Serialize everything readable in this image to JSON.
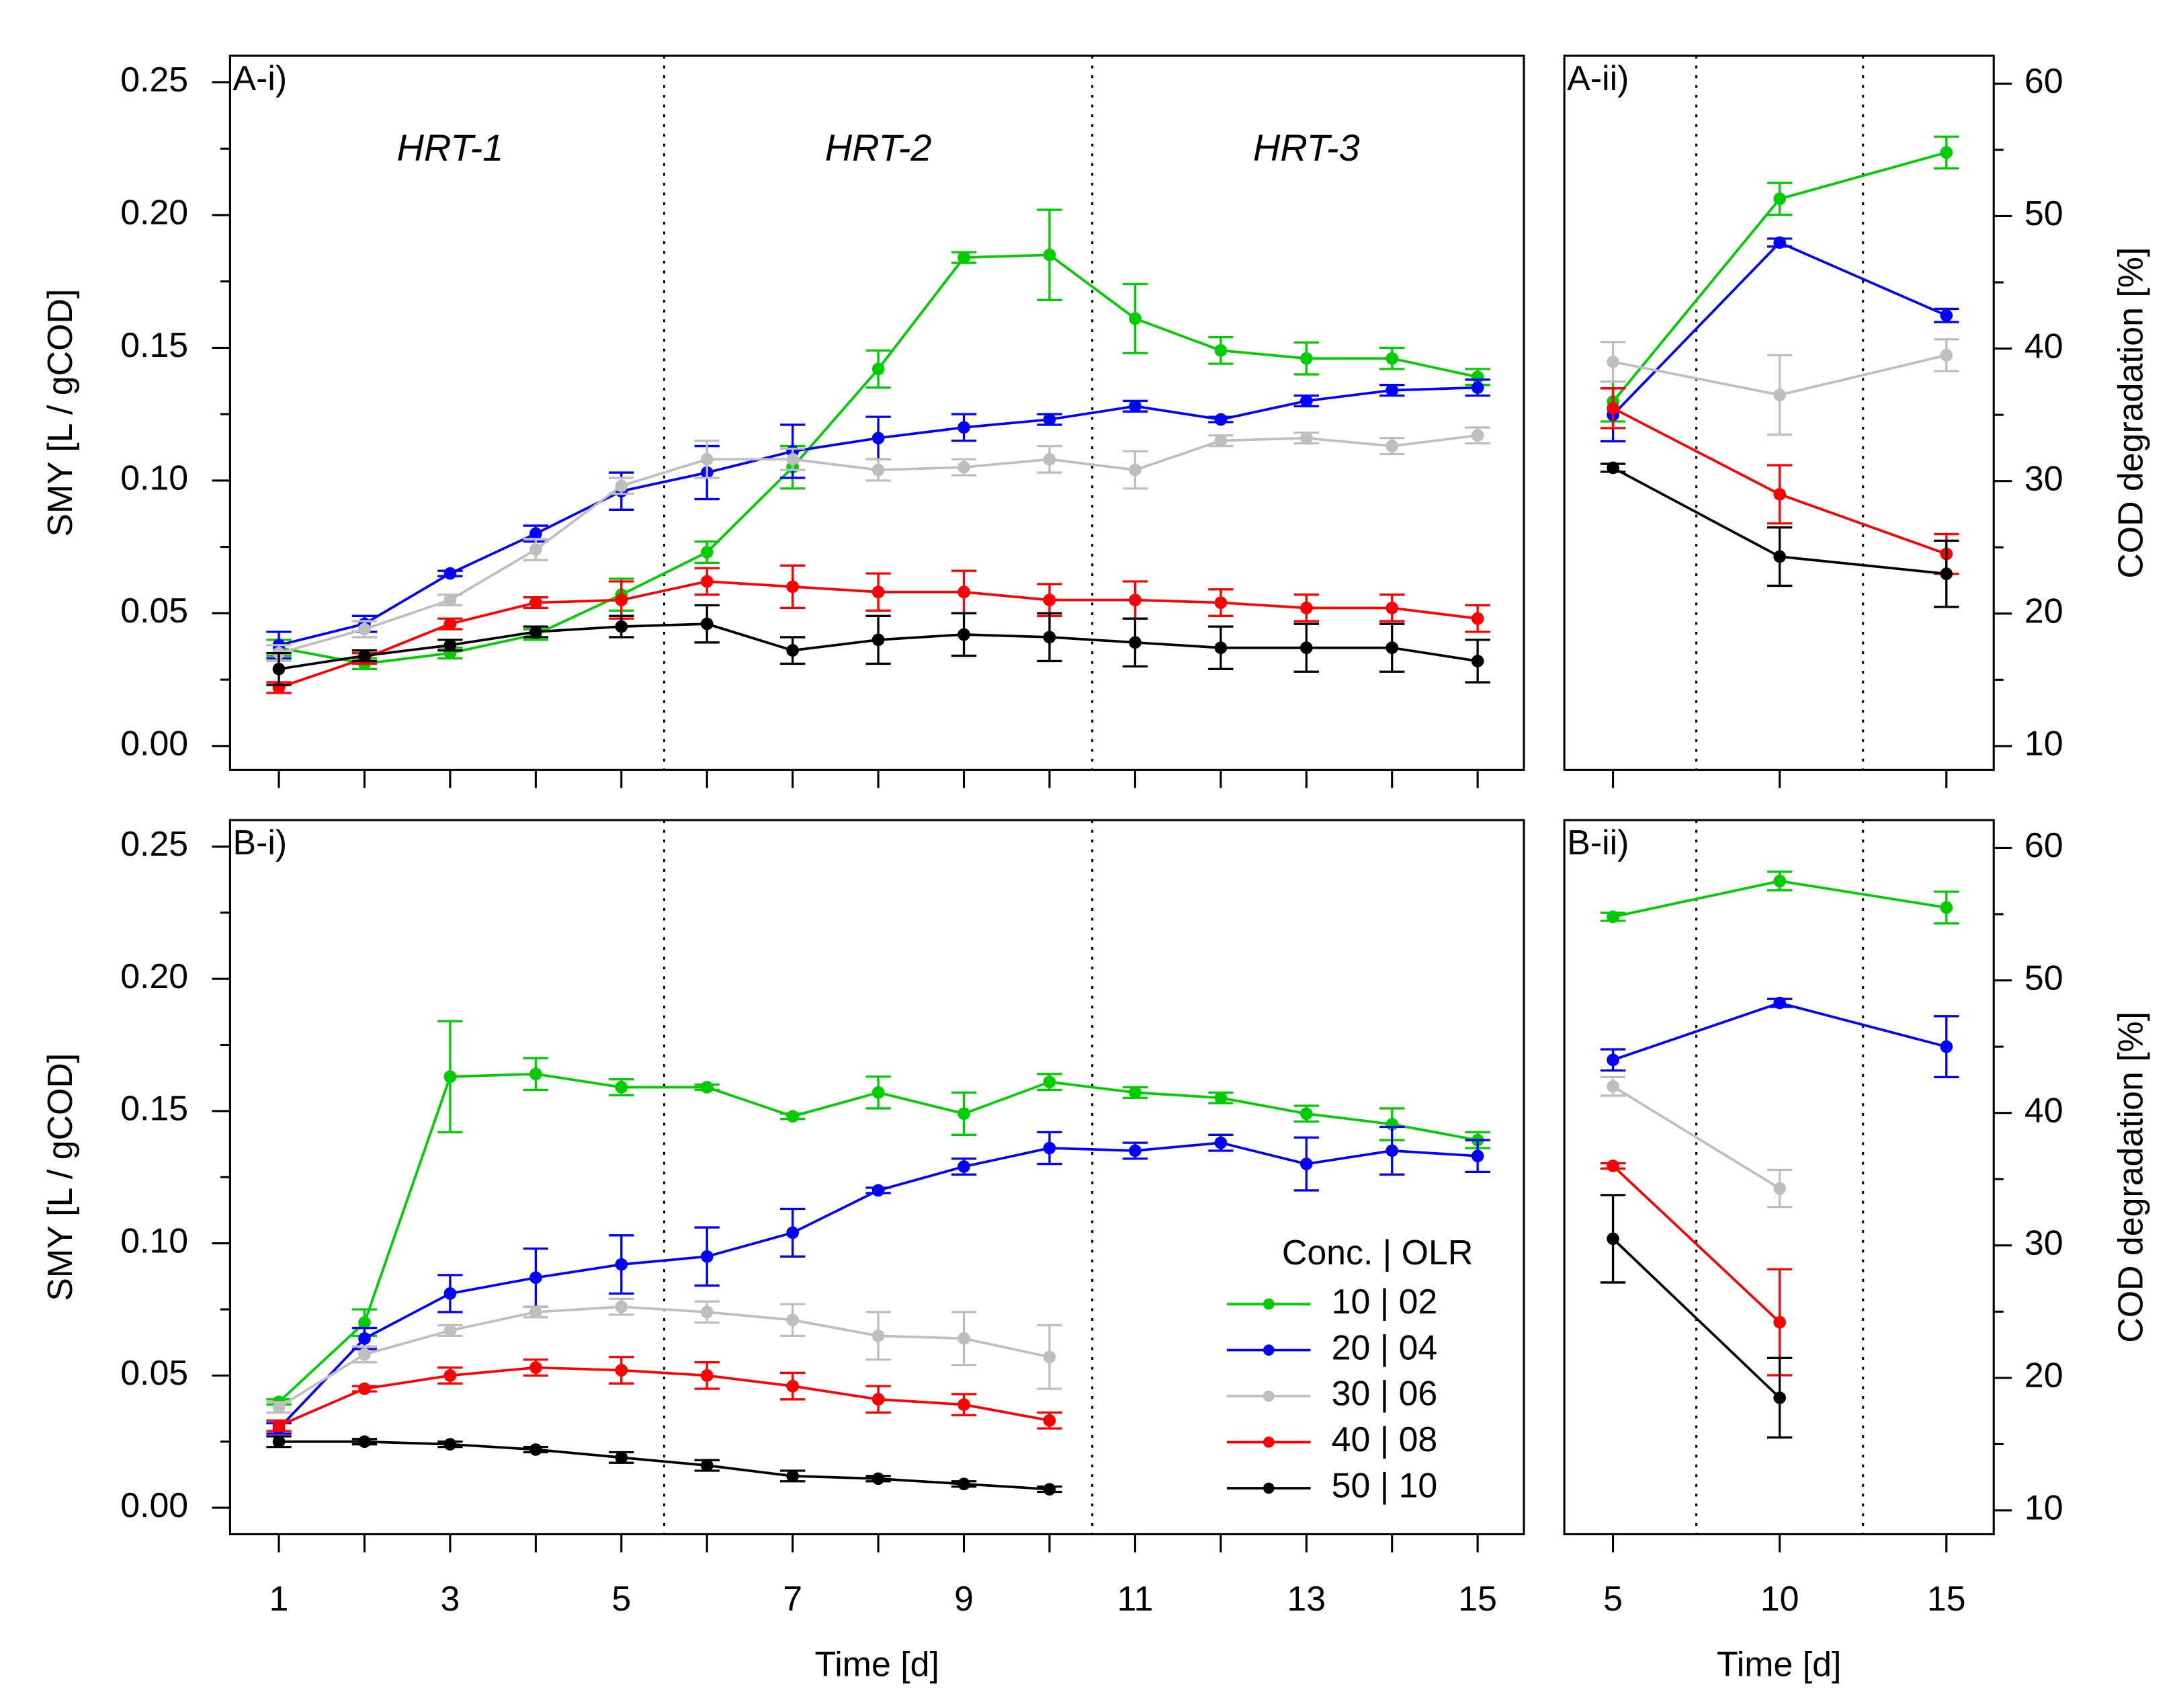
{
  "chart_data": [
    {
      "type": "line",
      "title": "A-i)",
      "ylabel": "SMY [L / gCOD]",
      "x": [
        1,
        2,
        3,
        4,
        5,
        6,
        7,
        8,
        9,
        10,
        11,
        12,
        13,
        14,
        15
      ],
      "xlim": [
        0.43,
        15.54
      ],
      "xtick_marks": [
        1,
        2,
        3,
        4,
        5,
        6,
        7,
        8,
        9,
        10,
        11,
        12,
        13,
        14,
        15
      ],
      "ylim": [
        -0.009,
        0.26
      ],
      "yticks": [
        {
          "value": 0,
          "label": "0.00"
        },
        0.05,
        {
          "value": 0.1,
          "label": "0.10"
        },
        0.15,
        {
          "value": 0.2,
          "label": "0.20"
        },
        0.25
      ],
      "yminorticks": [
        0.025,
        0.075,
        0.125,
        0.175,
        0.225
      ],
      "vlines": [
        5.5,
        10.5
      ],
      "annotations": [
        "HRT-1",
        "HRT-2",
        "HRT-3"
      ],
      "series": [
        {
          "color": "#00cc00",
          "values": [
            0.037,
            0.031,
            0.035,
            0.042,
            0.057,
            0.073,
            0.105,
            0.142,
            0.184,
            0.185,
            0.161,
            0.149,
            0.146,
            0.146,
            0.139
          ],
          "errors": [
            0.003,
            0.002,
            0.002,
            0.002,
            0.006,
            0.004,
            0.008,
            0.007,
            0.002,
            0.017,
            0.013,
            0.005,
            0.006,
            0.004,
            0.003
          ]
        },
        {
          "color": "#0000ff",
          "values": [
            0.038,
            0.046,
            0.065,
            0.08,
            0.096,
            0.103,
            0.111,
            0.116,
            0.12,
            0.123,
            0.128,
            0.123,
            0.13,
            0.134,
            0.135
          ],
          "errors": [
            0.005,
            0.003,
            0.001,
            0.003,
            0.007,
            0.01,
            0.01,
            0.008,
            0.005,
            0.002,
            0.002,
            0.001,
            0.002,
            0.002,
            0.003
          ]
        },
        {
          "color": "#bebebe",
          "values": [
            0.035,
            0.044,
            0.055,
            0.074,
            0.098,
            0.108,
            0.108,
            0.104,
            0.105,
            0.108,
            0.104,
            0.115,
            0.116,
            0.113,
            0.117
          ],
          "errors": [
            0.003,
            0.003,
            0.002,
            0.004,
            0.003,
            0.007,
            0.004,
            0.004,
            0.003,
            0.005,
            0.007,
            0.002,
            0.002,
            0.003,
            0.003
          ]
        },
        {
          "color": "#ff0000",
          "values": [
            0.022,
            0.033,
            0.046,
            0.054,
            0.055,
            0.062,
            0.06,
            0.058,
            0.058,
            0.055,
            0.055,
            0.054,
            0.052,
            0.052,
            0.048
          ],
          "errors": [
            0.002,
            0.002,
            0.002,
            0.002,
            0.007,
            0.005,
            0.008,
            0.007,
            0.008,
            0.006,
            0.007,
            0.005,
            0.005,
            0.005,
            0.005
          ]
        },
        {
          "color": "#000000",
          "values": [
            0.029,
            0.034,
            0.038,
            0.043,
            0.045,
            0.046,
            0.036,
            0.04,
            0.042,
            0.041,
            0.039,
            0.037,
            0.037,
            0.037,
            0.032
          ],
          "errors": [
            0.006,
            0.002,
            0.002,
            0.002,
            0.004,
            0.007,
            0.005,
            0.009,
            0.008,
            0.009,
            0.009,
            0.008,
            0.009,
            0.009,
            0.008
          ]
        }
      ]
    },
    {
      "type": "line",
      "title": "A-ii)",
      "y2label": "COD degradation [%]",
      "x": [
        5,
        10,
        15
      ],
      "xlim": [
        3.54,
        16.42
      ],
      "xtick_marks": [
        5,
        10,
        15
      ],
      "y2lim": [
        8.2,
        62.1
      ],
      "y2ticks": [
        10,
        20,
        30,
        40,
        50,
        60
      ],
      "y2minorticks": [
        15,
        25,
        35,
        45,
        55
      ],
      "vlines": [
        7.5,
        12.5
      ],
      "series": [
        {
          "color": "#00cc00",
          "axis": "y2",
          "values": [
            36,
            51.3,
            54.8
          ],
          "errors": [
            1.5,
            1.2,
            1.2
          ]
        },
        {
          "color": "#0000ff",
          "axis": "y2",
          "values": [
            35,
            48,
            42.5
          ],
          "errors": [
            2,
            0.3,
            0.5
          ]
        },
        {
          "color": "#bebebe",
          "axis": "y2",
          "values": [
            39,
            36.5,
            39.5
          ],
          "errors": [
            1.5,
            3,
            1.2
          ]
        },
        {
          "color": "#ff0000",
          "axis": "y2",
          "values": [
            35.5,
            29,
            24.5
          ],
          "errors": [
            1.5,
            2.2,
            1.5
          ]
        },
        {
          "color": "#000000",
          "axis": "y2",
          "values": [
            31,
            24.3,
            23
          ],
          "errors": [
            0.3,
            2.2,
            2.5
          ]
        }
      ]
    },
    {
      "type": "line",
      "title": "B-i)",
      "ylabel": "SMY [L / gCOD]",
      "xlabel": "Time [d]",
      "x": [
        1,
        2,
        3,
        4,
        5,
        6,
        7,
        8,
        9,
        10,
        11,
        12,
        13,
        14,
        15
      ],
      "xlim": [
        0.43,
        15.54
      ],
      "xticks": [
        1,
        3,
        5,
        7,
        9,
        11,
        13,
        15
      ],
      "xminorticks": [
        2,
        4,
        6,
        8,
        10,
        12,
        14
      ],
      "ylim": [
        -0.01,
        0.26
      ],
      "yticks": [
        {
          "value": 0,
          "label": "0.00"
        },
        0.05,
        {
          "value": 0.1,
          "label": "0.10"
        },
        0.15,
        {
          "value": 0.2,
          "label": "0.20"
        },
        0.25
      ],
      "yminorticks": [
        0.025,
        0.075,
        0.125,
        0.175,
        0.225
      ],
      "vlines": [
        5.5,
        10.5
      ],
      "legend": "lower right",
      "legend_title": "Conc. | OLR",
      "series": [
        {
          "name": "10 | 02",
          "color": "#00cc00",
          "values": [
            0.04,
            0.07,
            0.163,
            0.164,
            0.159,
            0.159,
            0.148,
            0.157,
            0.149,
            0.161,
            0.157,
            0.155,
            0.149,
            0.145,
            0.139
          ],
          "errors": [
            0.001,
            0.005,
            0.021,
            0.006,
            0.003,
            0.001,
            0.001,
            0.006,
            0.008,
            0.003,
            0.002,
            0.002,
            0.003,
            0.006,
            0.003
          ]
        },
        {
          "name": "20 | 04",
          "color": "#0000ff",
          "values": [
            0.03,
            0.064,
            0.081,
            0.087,
            0.092,
            0.095,
            0.104,
            0.12,
            0.129,
            0.136,
            0.135,
            0.138,
            0.13,
            0.135,
            0.133
          ],
          "errors": [
            0.002,
            0.004,
            0.007,
            0.011,
            0.011,
            0.011,
            0.009,
            0.001,
            0.003,
            0.006,
            0.003,
            0.003,
            0.01,
            0.009,
            0.006
          ]
        },
        {
          "name": "30 | 06",
          "color": "#bebebe",
          "values": [
            0.038,
            0.058,
            0.067,
            0.074,
            0.076,
            0.074,
            0.071,
            0.065,
            0.064,
            0.057,
            null,
            null,
            null,
            null,
            null
          ],
          "errors": [
            0.002,
            0.003,
            0.002,
            0.002,
            0.003,
            0.004,
            0.006,
            0.009,
            0.01,
            0.012,
            null,
            null,
            null,
            null,
            null
          ]
        },
        {
          "name": "40 | 08",
          "color": "#ff0000",
          "values": [
            0.031,
            0.045,
            0.05,
            0.053,
            0.052,
            0.05,
            0.046,
            0.041,
            0.039,
            0.033,
            null,
            null,
            null,
            null,
            null
          ],
          "errors": [
            0.002,
            0.001,
            0.003,
            0.003,
            0.005,
            0.005,
            0.005,
            0.005,
            0.004,
            0.003,
            null,
            null,
            null,
            null,
            null
          ]
        },
        {
          "name": "50 | 10",
          "color": "#000000",
          "values": [
            0.025,
            0.025,
            0.024,
            0.022,
            0.019,
            0.016,
            0.012,
            0.011,
            0.009,
            0.007,
            null,
            null,
            null,
            null,
            null
          ],
          "errors": [
            0.002,
            0.001,
            0.001,
            0.001,
            0.002,
            0.002,
            0.002,
            0.001,
            0.001,
            0.001,
            null,
            null,
            null,
            null,
            null
          ]
        }
      ]
    },
    {
      "type": "line",
      "title": "B-ii)",
      "y2label": "COD degradation [%]",
      "xlabel": "Time [d]",
      "x": [
        5,
        10,
        15
      ],
      "xlim": [
        3.54,
        16.42
      ],
      "xticks": [
        5,
        10,
        15
      ],
      "y2lim": [
        8.2,
        62.1
      ],
      "y2ticks": [
        10,
        20,
        30,
        40,
        50,
        60
      ],
      "y2minorticks": [
        15,
        25,
        35,
        45,
        55
      ],
      "vlines": [
        7.5,
        12.5
      ],
      "series": [
        {
          "color": "#00cc00",
          "axis": "y2",
          "values": [
            54.8,
            57.5,
            55.5
          ],
          "errors": [
            0.3,
            0.7,
            1.2
          ]
        },
        {
          "color": "#0000ff",
          "axis": "y2",
          "values": [
            44,
            48.3,
            45
          ],
          "errors": [
            0.8,
            0.3,
            2.3
          ]
        },
        {
          "color": "#bebebe",
          "axis": "y2",
          "values": [
            42,
            34.3,
            null
          ],
          "errors": [
            0.7,
            1.4,
            null
          ]
        },
        {
          "color": "#ff0000",
          "axis": "y2",
          "values": [
            36,
            24.2,
            null
          ],
          "errors": [
            0.2,
            4,
            null
          ]
        },
        {
          "color": "#000000",
          "axis": "y2",
          "values": [
            30.5,
            18.5,
            null
          ],
          "errors": [
            3.3,
            3,
            null
          ]
        }
      ]
    }
  ]
}
